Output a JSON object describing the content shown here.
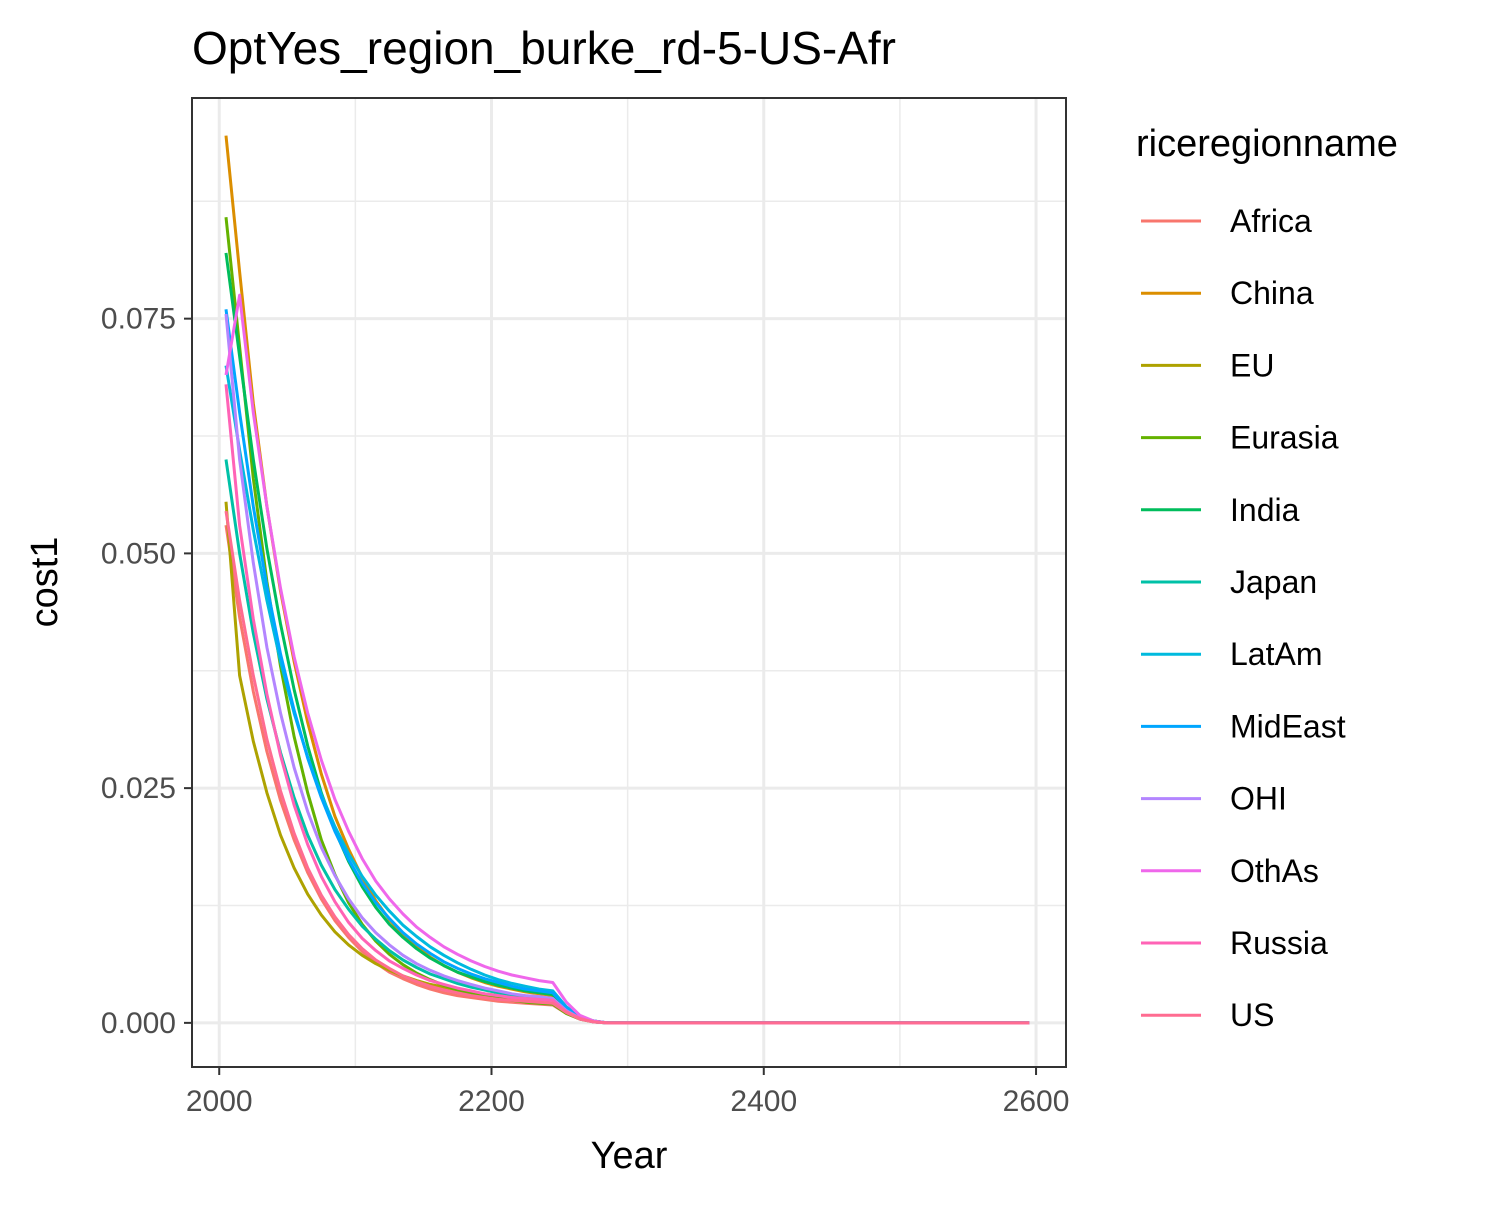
{
  "chart_data": {
    "type": "line",
    "title": "OptYes_region_burke_rd-5-US-Afr",
    "xlabel": "Year",
    "ylabel": "cost1",
    "xlim": [
      1980,
      2622
    ],
    "ylim": [
      -0.0047,
      0.0985
    ],
    "x_ticks": [
      "2000",
      "2200",
      "2400",
      "2600"
    ],
    "x_tick_values": [
      2000,
      2200,
      2400,
      2600
    ],
    "y_ticks": [
      "0.000",
      "0.025",
      "0.050",
      "0.075"
    ],
    "y_tick_values": [
      0,
      0.025,
      0.05,
      0.075
    ],
    "grid": true,
    "legend_title": "riceregionname",
    "legend_position": "right",
    "x": [
      2005,
      2015,
      2025,
      2035,
      2045,
      2055,
      2065,
      2075,
      2085,
      2095,
      2105,
      2115,
      2125,
      2135,
      2145,
      2155,
      2165,
      2175,
      2185,
      2195,
      2205,
      2215,
      2225,
      2235,
      2245,
      2255,
      2265,
      2275,
      2285,
      2295,
      2305,
      2315,
      2325,
      2335,
      2345,
      2355,
      2365,
      2375,
      2385,
      2395,
      2405,
      2415,
      2425,
      2435,
      2445,
      2455,
      2465,
      2475,
      2485,
      2495,
      2505,
      2515,
      2525,
      2535,
      2545,
      2555,
      2565,
      2575,
      2585,
      2595
    ],
    "series": [
      {
        "name": "Africa",
        "color": "#F8766D",
        "values": [
          0.053,
          0.0432,
          0.0353,
          0.0289,
          0.0237,
          0.0195,
          0.016,
          0.0132,
          0.0109,
          0.0091,
          0.0076,
          0.0064,
          0.0054,
          0.0047,
          0.0041,
          0.0036,
          0.0032,
          0.0029,
          0.0027,
          0.0025,
          0.0023,
          0.0022,
          0.0021,
          0.002,
          0.0019,
          0.001,
          0.0004,
          0.0001,
          0.0,
          0.0,
          0,
          0,
          0,
          0,
          0,
          0,
          0,
          0,
          0,
          0,
          0,
          0,
          0,
          0,
          0,
          0,
          0,
          0,
          0,
          0,
          0,
          0,
          0,
          0,
          0,
          0,
          0,
          0,
          0,
          0
        ]
      },
      {
        "name": "China",
        "color": "#DB8E00",
        "values": [
          0.0945,
          0.08,
          0.066,
          0.055,
          0.046,
          0.0385,
          0.032,
          0.0265,
          0.022,
          0.0185,
          0.0155,
          0.013,
          0.011,
          0.0094,
          0.0081,
          0.007,
          0.0061,
          0.0054,
          0.0048,
          0.0043,
          0.0039,
          0.0036,
          0.0033,
          0.0031,
          0.0029,
          0.0015,
          0.0006,
          0.0002,
          0.0,
          0.0,
          0,
          0,
          0,
          0,
          0,
          0,
          0,
          0,
          0,
          0,
          0,
          0,
          0,
          0,
          0,
          0,
          0,
          0,
          0,
          0,
          0,
          0,
          0,
          0,
          0,
          0,
          0,
          0,
          0,
          0
        ]
      },
      {
        "name": "EU",
        "color": "#AEA200",
        "values": [
          0.0555,
          0.037,
          0.03,
          0.0245,
          0.02,
          0.0165,
          0.0137,
          0.0115,
          0.0097,
          0.0083,
          0.0072,
          0.0063,
          0.0056,
          0.005,
          0.0045,
          0.0041,
          0.0038,
          0.0035,
          0.0033,
          0.0031,
          0.0029,
          0.0027,
          0.0026,
          0.0025,
          0.0024,
          0.0012,
          0.0005,
          0.0001,
          0.0,
          0.0,
          0,
          0,
          0,
          0,
          0,
          0,
          0,
          0,
          0,
          0,
          0,
          0,
          0,
          0,
          0,
          0,
          0,
          0,
          0,
          0,
          0,
          0,
          0,
          0,
          0,
          0,
          0,
          0,
          0,
          0
        ]
      },
      {
        "name": "Eurasia",
        "color": "#64B200",
        "values": [
          0.0858,
          0.072,
          0.058,
          0.047,
          0.038,
          0.0305,
          0.0245,
          0.0195,
          0.0158,
          0.0128,
          0.0105,
          0.0087,
          0.0073,
          0.0062,
          0.0053,
          0.0046,
          0.004,
          0.0035,
          0.0031,
          0.0028,
          0.0026,
          0.0024,
          0.0022,
          0.0021,
          0.002,
          0.001,
          0.0004,
          0.0001,
          0.0,
          0.0,
          0,
          0,
          0,
          0,
          0,
          0,
          0,
          0,
          0,
          0,
          0,
          0,
          0,
          0,
          0,
          0,
          0,
          0,
          0,
          0,
          0,
          0,
          0,
          0,
          0,
          0,
          0,
          0,
          0,
          0
        ]
      },
      {
        "name": "India",
        "color": "#00BD5C",
        "values": [
          0.082,
          0.071,
          0.06,
          0.0505,
          0.0425,
          0.0355,
          0.0295,
          0.0245,
          0.0205,
          0.0172,
          0.0145,
          0.0123,
          0.0105,
          0.0091,
          0.0079,
          0.0069,
          0.0061,
          0.0054,
          0.0049,
          0.0044,
          0.004,
          0.0037,
          0.0034,
          0.0032,
          0.003,
          0.0015,
          0.0006,
          0.0002,
          0.0,
          0.0,
          0,
          0,
          0,
          0,
          0,
          0,
          0,
          0,
          0,
          0,
          0,
          0,
          0,
          0,
          0,
          0,
          0,
          0,
          0,
          0,
          0,
          0,
          0,
          0,
          0,
          0,
          0,
          0,
          0,
          0
        ]
      },
      {
        "name": "Japan",
        "color": "#00C1A7",
        "values": [
          0.06,
          0.05,
          0.0415,
          0.0345,
          0.0288,
          0.024,
          0.02,
          0.0168,
          0.0142,
          0.0121,
          0.0103,
          0.0089,
          0.0077,
          0.0067,
          0.0059,
          0.0052,
          0.0047,
          0.0042,
          0.0038,
          0.0035,
          0.0032,
          0.003,
          0.0028,
          0.0026,
          0.0025,
          0.0013,
          0.0005,
          0.0001,
          0.0,
          0.0,
          0,
          0,
          0,
          0,
          0,
          0,
          0,
          0,
          0,
          0,
          0,
          0,
          0,
          0,
          0,
          0,
          0,
          0,
          0,
          0,
          0,
          0,
          0,
          0,
          0,
          0,
          0,
          0,
          0,
          0
        ]
      },
      {
        "name": "LatAm",
        "color": "#00BADE",
        "values": [
          0.07,
          0.061,
          0.0525,
          0.045,
          0.0385,
          0.033,
          0.0283,
          0.0243,
          0.0209,
          0.018,
          0.0156,
          0.0136,
          0.0119,
          0.0104,
          0.0092,
          0.0081,
          0.0072,
          0.0064,
          0.0057,
          0.0051,
          0.0046,
          0.0042,
          0.0039,
          0.0036,
          0.0034,
          0.0017,
          0.0007,
          0.0002,
          0.0,
          0.0,
          0,
          0,
          0,
          0,
          0,
          0,
          0,
          0,
          0,
          0,
          0,
          0,
          0,
          0,
          0,
          0,
          0,
          0,
          0,
          0,
          0,
          0,
          0,
          0,
          0,
          0,
          0,
          0,
          0,
          0
        ]
      },
      {
        "name": "MidEast",
        "color": "#00A6FF",
        "values": [
          0.076,
          0.065,
          0.055,
          0.0465,
          0.0393,
          0.0333,
          0.0282,
          0.024,
          0.0204,
          0.0174,
          0.0149,
          0.0128,
          0.0111,
          0.0096,
          0.0084,
          0.0074,
          0.0065,
          0.0058,
          0.0052,
          0.0047,
          0.0043,
          0.0039,
          0.0036,
          0.0034,
          0.0032,
          0.0016,
          0.0006,
          0.0002,
          0.0,
          0.0,
          0,
          0,
          0,
          0,
          0,
          0,
          0,
          0,
          0,
          0,
          0,
          0,
          0,
          0,
          0,
          0,
          0,
          0,
          0,
          0,
          0,
          0,
          0,
          0,
          0,
          0,
          0,
          0,
          0,
          0
        ]
      },
      {
        "name": "OHI",
        "color": "#B385FF",
        "values": [
          0.0755,
          0.06,
          0.049,
          0.04,
          0.033,
          0.0272,
          0.0225,
          0.0187,
          0.0157,
          0.0132,
          0.0112,
          0.0096,
          0.0083,
          0.0072,
          0.0063,
          0.0056,
          0.005,
          0.0045,
          0.0041,
          0.0037,
          0.0034,
          0.0031,
          0.0029,
          0.0028,
          0.0026,
          0.0013,
          0.0005,
          0.0001,
          0.0,
          0.0,
          0,
          0,
          0,
          0,
          0,
          0,
          0,
          0,
          0,
          0,
          0,
          0,
          0,
          0,
          0,
          0,
          0,
          0,
          0,
          0,
          0,
          0,
          0,
          0,
          0,
          0,
          0,
          0,
          0,
          0
        ]
      },
      {
        "name": "OthAs",
        "color": "#EF67EB",
        "values": [
          0.069,
          0.0775,
          0.065,
          0.055,
          0.0463,
          0.039,
          0.033,
          0.028,
          0.0238,
          0.0204,
          0.0175,
          0.0151,
          0.0132,
          0.0116,
          0.0102,
          0.0091,
          0.0081,
          0.0073,
          0.0066,
          0.006,
          0.0055,
          0.0051,
          0.0048,
          0.0045,
          0.0043,
          0.0022,
          0.0008,
          0.0002,
          0.0,
          0.0,
          0,
          0,
          0,
          0,
          0,
          0,
          0,
          0,
          0,
          0,
          0,
          0,
          0,
          0,
          0,
          0,
          0,
          0,
          0,
          0,
          0,
          0,
          0,
          0,
          0,
          0,
          0,
          0,
          0,
          0
        ]
      },
      {
        "name": "Russia",
        "color": "#FF63B6",
        "values": [
          0.068,
          0.053,
          0.043,
          0.035,
          0.0285,
          0.0232,
          0.019,
          0.0156,
          0.0129,
          0.0107,
          0.009,
          0.0077,
          0.0066,
          0.0058,
          0.0051,
          0.0045,
          0.0041,
          0.0037,
          0.0034,
          0.0031,
          0.0029,
          0.0027,
          0.0026,
          0.0025,
          0.0024,
          0.0012,
          0.0005,
          0.0001,
          0.0,
          0.0,
          0,
          0,
          0,
          0,
          0,
          0,
          0,
          0,
          0,
          0,
          0,
          0,
          0,
          0,
          0,
          0,
          0,
          0,
          0,
          0,
          0,
          0,
          0,
          0,
          0,
          0,
          0,
          0,
          0,
          0
        ]
      },
      {
        "name": "US",
        "color": "#FF6C91",
        "values": [
          0.0545,
          0.045,
          0.037,
          0.0302,
          0.0247,
          0.0202,
          0.0165,
          0.0136,
          0.0113,
          0.0094,
          0.0079,
          0.0067,
          0.0058,
          0.005,
          0.0044,
          0.0039,
          0.0035,
          0.0032,
          0.0029,
          0.0027,
          0.0025,
          0.0024,
          0.0023,
          0.0022,
          0.0021,
          0.0011,
          0.0004,
          0.0001,
          0.0,
          0.0,
          0,
          0,
          0,
          0,
          0,
          0,
          0,
          0,
          0,
          0,
          0,
          0,
          0,
          0,
          0,
          0,
          0,
          0,
          0,
          0,
          0,
          0,
          0,
          0,
          0,
          0,
          0,
          0,
          0,
          0
        ]
      }
    ]
  }
}
